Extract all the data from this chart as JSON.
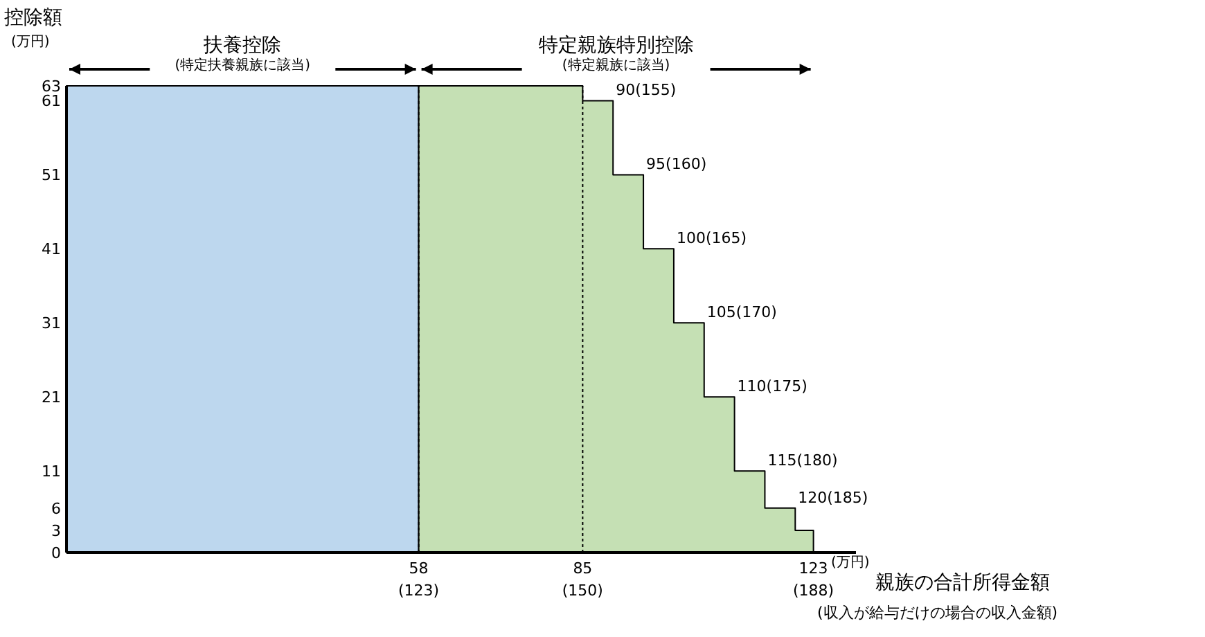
{
  "chart_data": {
    "type": "area",
    "ylabel": "控除額",
    "xlabel": "親族の合計所得金額\n(収入が給与だけの場合の収入金額)",
    "series": [
      {
        "color": "#bdd7ee",
        "x": [
          0,
          58
        ],
        "values": [
          63,
          63
        ]
      },
      {
        "color": "#c5e0b4",
        "x": [
          58,
          85,
          85,
          90,
          90,
          95,
          95,
          100,
          100,
          105,
          105,
          110,
          110,
          115,
          115,
          120,
          120,
          123
        ],
        "values": [
          63,
          63,
          61,
          61,
          51,
          51,
          41,
          41,
          31,
          31,
          21,
          21,
          11,
          11,
          6,
          6,
          3,
          3
        ]
      }
    ],
    "xlim": [
      0,
      130
    ],
    "ylim": [
      0,
      63
    ],
    "xticks": [
      58,
      85,
      123
    ],
    "yticks": [
      0,
      3,
      6,
      11,
      21,
      31,
      41,
      51,
      61,
      63
    ],
    "ref_lines": [
      {
        "axis": "x",
        "value": 58,
        "line_style": "dotted",
        "color": "#000000"
      },
      {
        "axis": "x",
        "value": 85,
        "line_style": "dotted",
        "color": "#000000"
      }
    ],
    "annotations": [
      "扶養控除",
      "(特定扶養親族に該当)",
      "特定親族特別控除",
      "(特定親族に該当)",
      "(万円)",
      "(万円)",
      "(123)",
      "(150)",
      "(188)",
      {
        "text": "90(155)",
        "x": 90,
        "y": 61
      },
      {
        "text": "95(160)",
        "x": 95,
        "y": 51
      },
      {
        "text": "100(165)",
        "x": 100,
        "y": 41
      },
      {
        "text": "105(170)",
        "x": 105,
        "y": 31
      },
      {
        "text": "110(175)",
        "x": 110,
        "y": 21
      },
      {
        "text": "115(180)",
        "x": 115,
        "y": 11
      },
      {
        "text": "120(185)",
        "x": 120,
        "y": 6
      }
    ]
  }
}
